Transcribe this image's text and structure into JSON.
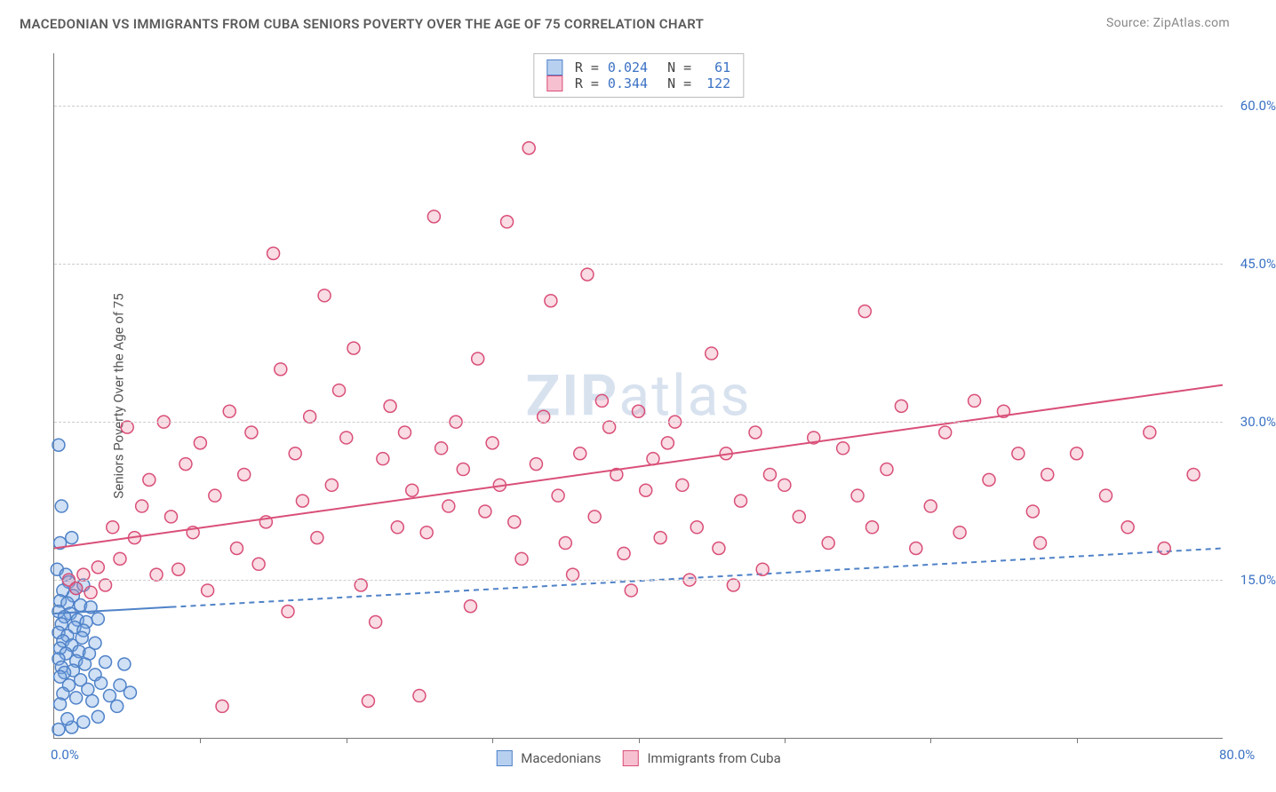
{
  "title": "MACEDONIAN VS IMMIGRANTS FROM CUBA SENIORS POVERTY OVER THE AGE OF 75 CORRELATION CHART",
  "source": "Source: ZipAtlas.com",
  "yaxis_title": "Seniors Poverty Over the Age of 75",
  "watermark_prefix": "ZIP",
  "watermark_suffix": "atlas",
  "chart": {
    "type": "scatter",
    "xlim": [
      0,
      80
    ],
    "ylim": [
      0,
      65
    ],
    "xticks": [
      0,
      80
    ],
    "xtick_labels": [
      "0.0%",
      "80.0%"
    ],
    "minor_xticks": [
      10,
      20,
      30,
      40,
      50,
      60,
      70
    ],
    "yticks": [
      15,
      30,
      45,
      60
    ],
    "ytick_labels": [
      "15.0%",
      "30.0%",
      "45.0%",
      "60.0%"
    ],
    "grid_color": "#d0d0d0",
    "axis_color": "#777777",
    "background_color": "#ffffff",
    "label_color": "#3b72c4",
    "label_fontsize": 15,
    "marker_radius": 7,
    "marker_stroke_width": 1.5,
    "trend_line_width": 2,
    "series": [
      {
        "name": "Macedonians",
        "fill": "rgba(120,165,225,0.35)",
        "stroke": "#4f82c8",
        "swatch_fill": "#b8d0f0",
        "swatch_border": "#4f82c8",
        "trend_solid_to_x": 8,
        "trend": {
          "y0": 11.8,
          "y80": 18.0
        },
        "R": "0.024",
        "N": "61",
        "points": [
          [
            0.3,
            27.8
          ],
          [
            0.5,
            22.0
          ],
          [
            0.4,
            18.5
          ],
          [
            1.2,
            19.0
          ],
          [
            0.2,
            16.0
          ],
          [
            0.8,
            15.5
          ],
          [
            1.0,
            14.8
          ],
          [
            0.6,
            14.0
          ],
          [
            1.5,
            14.2
          ],
          [
            2.0,
            14.5
          ],
          [
            1.3,
            13.5
          ],
          [
            0.4,
            13.0
          ],
          [
            0.9,
            12.8
          ],
          [
            1.8,
            12.6
          ],
          [
            2.5,
            12.4
          ],
          [
            0.3,
            12.0
          ],
          [
            1.1,
            11.8
          ],
          [
            0.7,
            11.5
          ],
          [
            1.6,
            11.2
          ],
          [
            2.2,
            11.0
          ],
          [
            3.0,
            11.3
          ],
          [
            0.5,
            10.8
          ],
          [
            1.4,
            10.5
          ],
          [
            2.0,
            10.2
          ],
          [
            0.3,
            10.0
          ],
          [
            0.9,
            9.7
          ],
          [
            1.9,
            9.5
          ],
          [
            2.8,
            9.0
          ],
          [
            0.6,
            9.2
          ],
          [
            1.2,
            8.8
          ],
          [
            0.4,
            8.5
          ],
          [
            1.7,
            8.2
          ],
          [
            2.4,
            8.0
          ],
          [
            0.8,
            8.0
          ],
          [
            0.3,
            7.5
          ],
          [
            1.5,
            7.3
          ],
          [
            3.5,
            7.2
          ],
          [
            4.8,
            7.0
          ],
          [
            2.1,
            7.0
          ],
          [
            0.5,
            6.7
          ],
          [
            1.3,
            6.4
          ],
          [
            2.8,
            6.0
          ],
          [
            0.7,
            6.2
          ],
          [
            0.4,
            5.8
          ],
          [
            1.8,
            5.5
          ],
          [
            3.2,
            5.2
          ],
          [
            4.5,
            5.0
          ],
          [
            1.0,
            5.0
          ],
          [
            2.3,
            4.6
          ],
          [
            0.6,
            4.2
          ],
          [
            3.8,
            4.0
          ],
          [
            5.2,
            4.3
          ],
          [
            1.5,
            3.8
          ],
          [
            2.6,
            3.5
          ],
          [
            0.4,
            3.2
          ],
          [
            4.3,
            3.0
          ],
          [
            1.2,
            1.0
          ],
          [
            0.3,
            0.8
          ],
          [
            3.0,
            2.0
          ],
          [
            0.9,
            1.8
          ],
          [
            2.0,
            1.5
          ]
        ]
      },
      {
        "name": "Immigrants from Cuba",
        "fill": "rgba(235,140,165,0.30)",
        "stroke": "#d94f78",
        "swatch_fill": "#f7c0d0",
        "swatch_border": "#d94f78",
        "trend_solid_to_x": 80,
        "trend": {
          "y0": 18.0,
          "y80": 33.5
        },
        "R": "0.344",
        "N": "122",
        "points": [
          [
            1.0,
            15.0
          ],
          [
            1.5,
            14.2
          ],
          [
            2.0,
            15.5
          ],
          [
            2.5,
            13.8
          ],
          [
            3.0,
            16.2
          ],
          [
            3.5,
            14.5
          ],
          [
            4.0,
            20.0
          ],
          [
            4.5,
            17.0
          ],
          [
            5.0,
            29.5
          ],
          [
            5.5,
            19.0
          ],
          [
            6.0,
            22.0
          ],
          [
            6.5,
            24.5
          ],
          [
            7.0,
            15.5
          ],
          [
            7.5,
            30.0
          ],
          [
            8.0,
            21.0
          ],
          [
            8.5,
            16.0
          ],
          [
            9.0,
            26.0
          ],
          [
            9.5,
            19.5
          ],
          [
            10.0,
            28.0
          ],
          [
            10.5,
            14.0
          ],
          [
            11.0,
            23.0
          ],
          [
            11.5,
            3.0
          ],
          [
            12.0,
            31.0
          ],
          [
            12.5,
            18.0
          ],
          [
            13.0,
            25.0
          ],
          [
            13.5,
            29.0
          ],
          [
            14.0,
            16.5
          ],
          [
            14.5,
            20.5
          ],
          [
            15.0,
            46.0
          ],
          [
            15.5,
            35.0
          ],
          [
            16.0,
            12.0
          ],
          [
            16.5,
            27.0
          ],
          [
            17.0,
            22.5
          ],
          [
            17.5,
            30.5
          ],
          [
            18.0,
            19.0
          ],
          [
            18.5,
            42.0
          ],
          [
            19.0,
            24.0
          ],
          [
            19.5,
            33.0
          ],
          [
            20.0,
            28.5
          ],
          [
            20.5,
            37.0
          ],
          [
            21.0,
            14.5
          ],
          [
            21.5,
            3.5
          ],
          [
            22.0,
            11.0
          ],
          [
            22.5,
            26.5
          ],
          [
            23.0,
            31.5
          ],
          [
            23.5,
            20.0
          ],
          [
            24.0,
            29.0
          ],
          [
            24.5,
            23.5
          ],
          [
            25.0,
            4.0
          ],
          [
            25.5,
            19.5
          ],
          [
            26.0,
            49.5
          ],
          [
            26.5,
            27.5
          ],
          [
            27.0,
            22.0
          ],
          [
            27.5,
            30.0
          ],
          [
            28.0,
            25.5
          ],
          [
            28.5,
            12.5
          ],
          [
            29.0,
            36.0
          ],
          [
            29.5,
            21.5
          ],
          [
            30.0,
            28.0
          ],
          [
            30.5,
            24.0
          ],
          [
            31.0,
            49.0
          ],
          [
            31.5,
            20.5
          ],
          [
            32.0,
            17.0
          ],
          [
            32.5,
            56.0
          ],
          [
            33.0,
            26.0
          ],
          [
            33.5,
            30.5
          ],
          [
            34.0,
            41.5
          ],
          [
            34.5,
            23.0
          ],
          [
            35.0,
            18.5
          ],
          [
            35.5,
            15.5
          ],
          [
            36.0,
            27.0
          ],
          [
            36.5,
            44.0
          ],
          [
            37.0,
            21.0
          ],
          [
            37.5,
            32.0
          ],
          [
            38.0,
            29.5
          ],
          [
            38.5,
            25.0
          ],
          [
            39.0,
            17.5
          ],
          [
            39.5,
            14.0
          ],
          [
            40.0,
            31.0
          ],
          [
            40.5,
            23.5
          ],
          [
            41.0,
            26.5
          ],
          [
            41.5,
            19.0
          ],
          [
            42.0,
            28.0
          ],
          [
            42.5,
            30.0
          ],
          [
            43.0,
            24.0
          ],
          [
            43.5,
            15.0
          ],
          [
            44.0,
            20.0
          ],
          [
            45.0,
            36.5
          ],
          [
            46.0,
            27.0
          ],
          [
            47.0,
            22.5
          ],
          [
            48.0,
            29.0
          ],
          [
            45.5,
            18.0
          ],
          [
            46.5,
            14.5
          ],
          [
            48.5,
            16.0
          ],
          [
            49.0,
            25.0
          ],
          [
            50.0,
            24.0
          ],
          [
            51.0,
            21.0
          ],
          [
            52.0,
            28.5
          ],
          [
            53.0,
            18.5
          ],
          [
            54.0,
            27.5
          ],
          [
            55.0,
            23.0
          ],
          [
            56.0,
            20.0
          ],
          [
            57.0,
            25.5
          ],
          [
            58.0,
            31.5
          ],
          [
            59.0,
            18.0
          ],
          [
            60.0,
            22.0
          ],
          [
            61.0,
            29.0
          ],
          [
            62.0,
            19.5
          ],
          [
            63.0,
            32.0
          ],
          [
            64.0,
            24.5
          ],
          [
            65.0,
            31.0
          ],
          [
            66.0,
            27.0
          ],
          [
            67.0,
            21.5
          ],
          [
            68.0,
            25.0
          ],
          [
            55.5,
            40.5
          ],
          [
            67.5,
            18.5
          ],
          [
            70.0,
            27.0
          ],
          [
            72.0,
            23.0
          ],
          [
            73.5,
            20.0
          ],
          [
            75.0,
            29.0
          ],
          [
            76.0,
            18.0
          ],
          [
            78.0,
            25.0
          ]
        ]
      }
    ]
  },
  "legend_top": [
    {
      "series_idx": 0,
      "R_label": "R =",
      "N_label": "N ="
    },
    {
      "series_idx": 1,
      "R_label": "R =",
      "N_label": "N ="
    }
  ],
  "legend_bottom": [
    {
      "series_idx": 0
    },
    {
      "series_idx": 1
    }
  ]
}
